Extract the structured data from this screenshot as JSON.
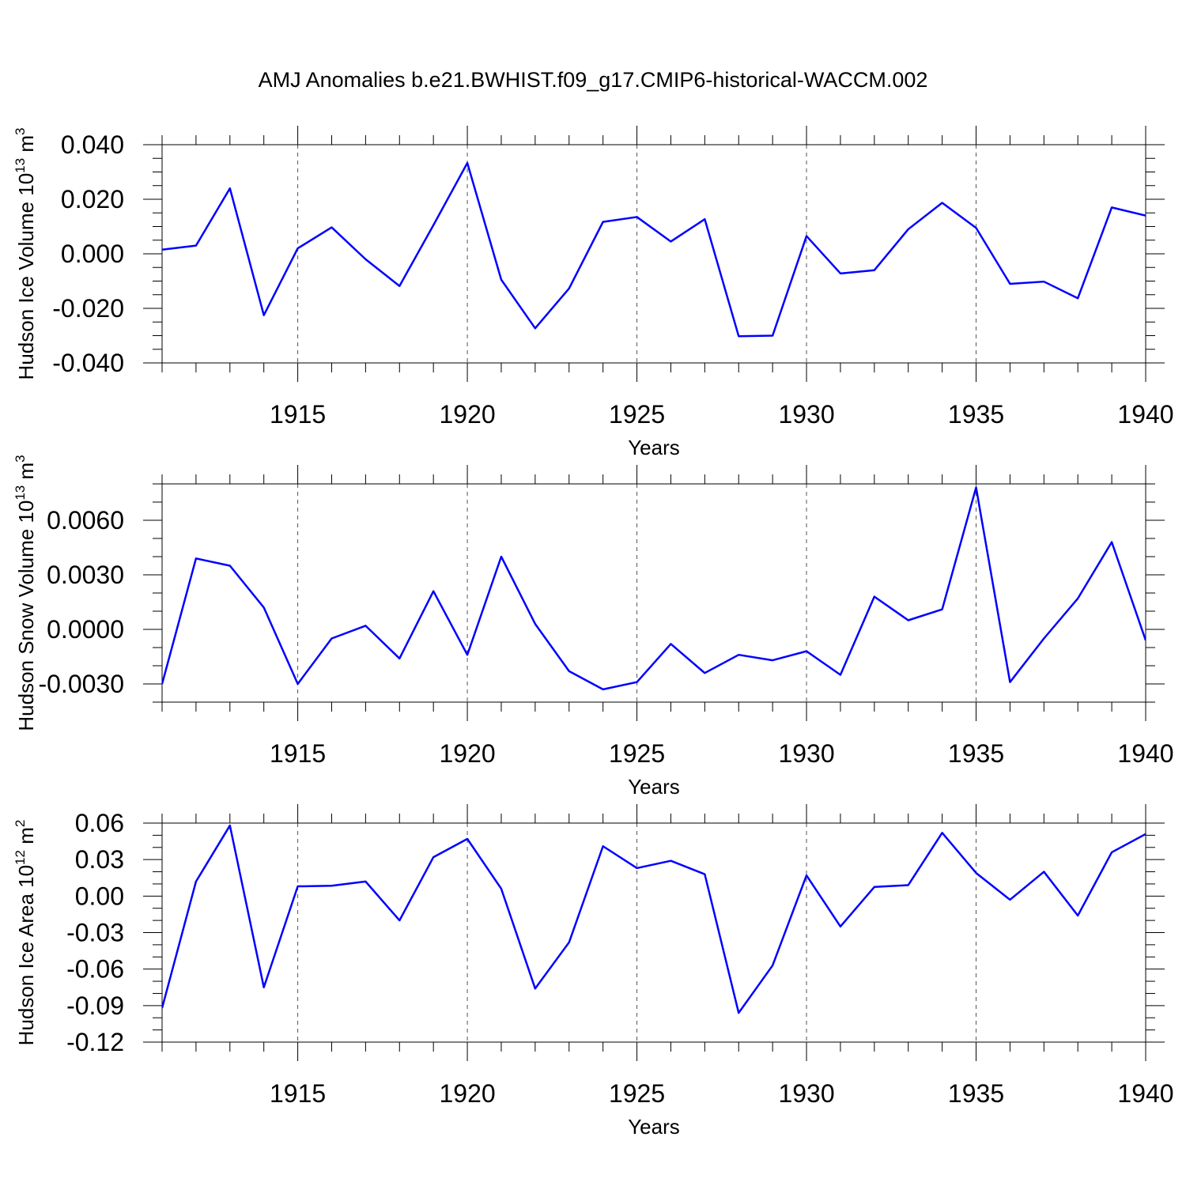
{
  "title": "AMJ Anomalies b.e21.BWHIST.f09_g17.CMIP6-historical-WACCM.002",
  "colors": {
    "line": "#0000ff",
    "frame": "#000000",
    "grid": "#555555"
  },
  "chart_data": [
    {
      "type": "line",
      "ylabel": "Hudson Ice Volume 10",
      "ylabel_exp": "13",
      "ylabel_unit": " m",
      "ylabel_unit_exp": "3",
      "xlabel": "Years",
      "xlim": [
        1911,
        1940
      ],
      "ylim": [
        -0.04,
        0.04
      ],
      "xticks": [
        1915,
        1920,
        1925,
        1930,
        1935,
        1940
      ],
      "yticks": [
        -0.04,
        -0.02,
        0.0,
        0.02,
        0.04
      ],
      "ytick_labels": [
        "-0.040",
        "-0.020",
        "0.000",
        "0.020",
        "0.040"
      ],
      "yminor_step": 0.005,
      "grid": "vertical-dashed",
      "series": [
        {
          "x": [
            1911,
            1912,
            1913,
            1914,
            1915,
            1916,
            1917,
            1918,
            1919,
            1920,
            1921,
            1922,
            1923,
            1924,
            1925,
            1926,
            1927,
            1928,
            1929,
            1930,
            1931,
            1932,
            1933,
            1934,
            1935,
            1936,
            1937,
            1938,
            1939,
            1940
          ],
          "values": [
            0.0015,
            0.003,
            0.024,
            -0.0225,
            0.002,
            0.0097,
            -0.002,
            -0.0118,
            0.0105,
            0.0333,
            -0.0095,
            -0.0273,
            -0.0127,
            0.0117,
            0.0135,
            0.0045,
            0.0127,
            -0.0302,
            -0.03,
            0.0065,
            -0.0072,
            -0.006,
            0.009,
            0.0187,
            0.0095,
            -0.011,
            -0.0102,
            -0.0163,
            0.017,
            0.014
          ]
        }
      ]
    },
    {
      "type": "line",
      "ylabel": "Hudson Snow Volume 10",
      "ylabel_exp": "13",
      "ylabel_unit": " m",
      "ylabel_unit_exp": "3",
      "xlabel": "Years",
      "xlim": [
        1911,
        1940
      ],
      "ylim": [
        -0.004,
        0.008
      ],
      "xticks": [
        1915,
        1920,
        1925,
        1930,
        1935,
        1940
      ],
      "yticks": [
        -0.003,
        0.0,
        0.003,
        0.006
      ],
      "ytick_labels": [
        "-0.0030",
        "0.0000",
        "0.0030",
        "0.0060"
      ],
      "yminor_step": 0.001,
      "grid": "vertical-dashed",
      "series": [
        {
          "x": [
            1911,
            1912,
            1913,
            1914,
            1915,
            1916,
            1917,
            1918,
            1919,
            1920,
            1921,
            1922,
            1923,
            1924,
            1925,
            1926,
            1927,
            1928,
            1929,
            1930,
            1931,
            1932,
            1933,
            1934,
            1935,
            1936,
            1937,
            1938,
            1939,
            1940
          ],
          "values": [
            -0.003,
            0.0039,
            0.0035,
            0.0012,
            -0.003,
            -0.0005,
            0.0002,
            -0.0016,
            0.0021,
            -0.0014,
            0.004,
            0.0003,
            -0.0023,
            -0.0033,
            -0.0029,
            -0.0008,
            -0.0024,
            -0.0014,
            -0.0017,
            -0.0012,
            -0.0025,
            0.0018,
            0.0005,
            0.0011,
            0.0078,
            -0.0029,
            -0.0005,
            0.0017,
            0.0048,
            -0.0006
          ]
        }
      ]
    },
    {
      "type": "line",
      "ylabel": "Hudson Ice Area 10",
      "ylabel_exp": "12",
      "ylabel_unit": " m",
      "ylabel_unit_exp": "2",
      "xlabel": "Years",
      "xlim": [
        1911,
        1940
      ],
      "ylim": [
        -0.12,
        0.06
      ],
      "xticks": [
        1915,
        1920,
        1925,
        1930,
        1935,
        1940
      ],
      "yticks": [
        -0.12,
        -0.09,
        -0.06,
        -0.03,
        0.0,
        0.03,
        0.06
      ],
      "ytick_labels": [
        "-0.12",
        "-0.09",
        "-0.06",
        "-0.03",
        "0.00",
        "0.03",
        "0.06"
      ],
      "yminor_step": 0.01,
      "grid": "vertical-dashed",
      "series": [
        {
          "x": [
            1911,
            1912,
            1913,
            1914,
            1915,
            1916,
            1917,
            1918,
            1919,
            1920,
            1921,
            1922,
            1923,
            1924,
            1925,
            1926,
            1927,
            1928,
            1929,
            1930,
            1931,
            1932,
            1933,
            1934,
            1935,
            1936,
            1937,
            1938,
            1939,
            1940
          ],
          "values": [
            -0.092,
            0.012,
            0.058,
            -0.075,
            0.008,
            0.0085,
            0.012,
            -0.02,
            0.032,
            0.047,
            0.006,
            -0.076,
            -0.038,
            0.041,
            0.023,
            0.029,
            0.018,
            -0.096,
            -0.057,
            0.017,
            -0.025,
            0.0075,
            0.009,
            0.052,
            0.019,
            -0.003,
            0.02,
            -0.016,
            0.036,
            0.051
          ]
        }
      ]
    }
  ]
}
